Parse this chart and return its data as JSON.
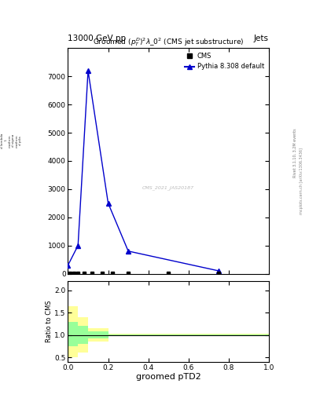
{
  "title_text": "13000 GeV pp",
  "title_right": "Jets",
  "plot_title": "Groomed $(p_T^D)^2\\lambda\\_0^2$ (CMS jet substructure)",
  "xlabel": "groomed pTD2",
  "ylabel_ratio": "Ratio to CMS",
  "right_label_main": "mcplots.cern.ch [arXiv:1306.3436]",
  "right_label_sub": "Rivet 3.1.10, 3.2M events",
  "watermark": "CMS_2021_JAS20187",
  "pythia_x": [
    0.0,
    0.05,
    0.1,
    0.2,
    0.3,
    0.75
  ],
  "pythia_y": [
    300,
    1000,
    7200,
    2500,
    800,
    100
  ],
  "cms_x": [
    0.01,
    0.03,
    0.05,
    0.08,
    0.12,
    0.17,
    0.22,
    0.3,
    0.5,
    0.75
  ],
  "cms_y": [
    5,
    5,
    5,
    5,
    5,
    5,
    5,
    5,
    5,
    20
  ],
  "ratio_bin_edges": [
    0.0,
    0.05,
    0.1,
    0.2,
    1.0
  ],
  "ratio_yellow_low": [
    0.5,
    0.6,
    0.85,
    0.98
  ],
  "ratio_yellow_high": [
    1.65,
    1.4,
    1.15,
    1.02
  ],
  "ratio_green_low": [
    0.75,
    0.8,
    0.92,
    0.99
  ],
  "ratio_green_high": [
    1.3,
    1.2,
    1.08,
    1.01
  ],
  "ratio_line": 1.0,
  "xlim": [
    0.0,
    1.0
  ],
  "ylim_main": [
    0,
    8000
  ],
  "ylim_ratio": [
    0.4,
    2.2
  ],
  "yticks_main": [
    0,
    1000,
    2000,
    3000,
    4000,
    5000,
    6000,
    7000
  ],
  "yticks_ratio": [
    0.5,
    1.0,
    1.5,
    2.0
  ],
  "color_pythia": "#0000cc",
  "color_cms": "#000000",
  "color_yellow": "#ffff99",
  "color_green": "#99ff99",
  "bg_color": "#ffffff"
}
